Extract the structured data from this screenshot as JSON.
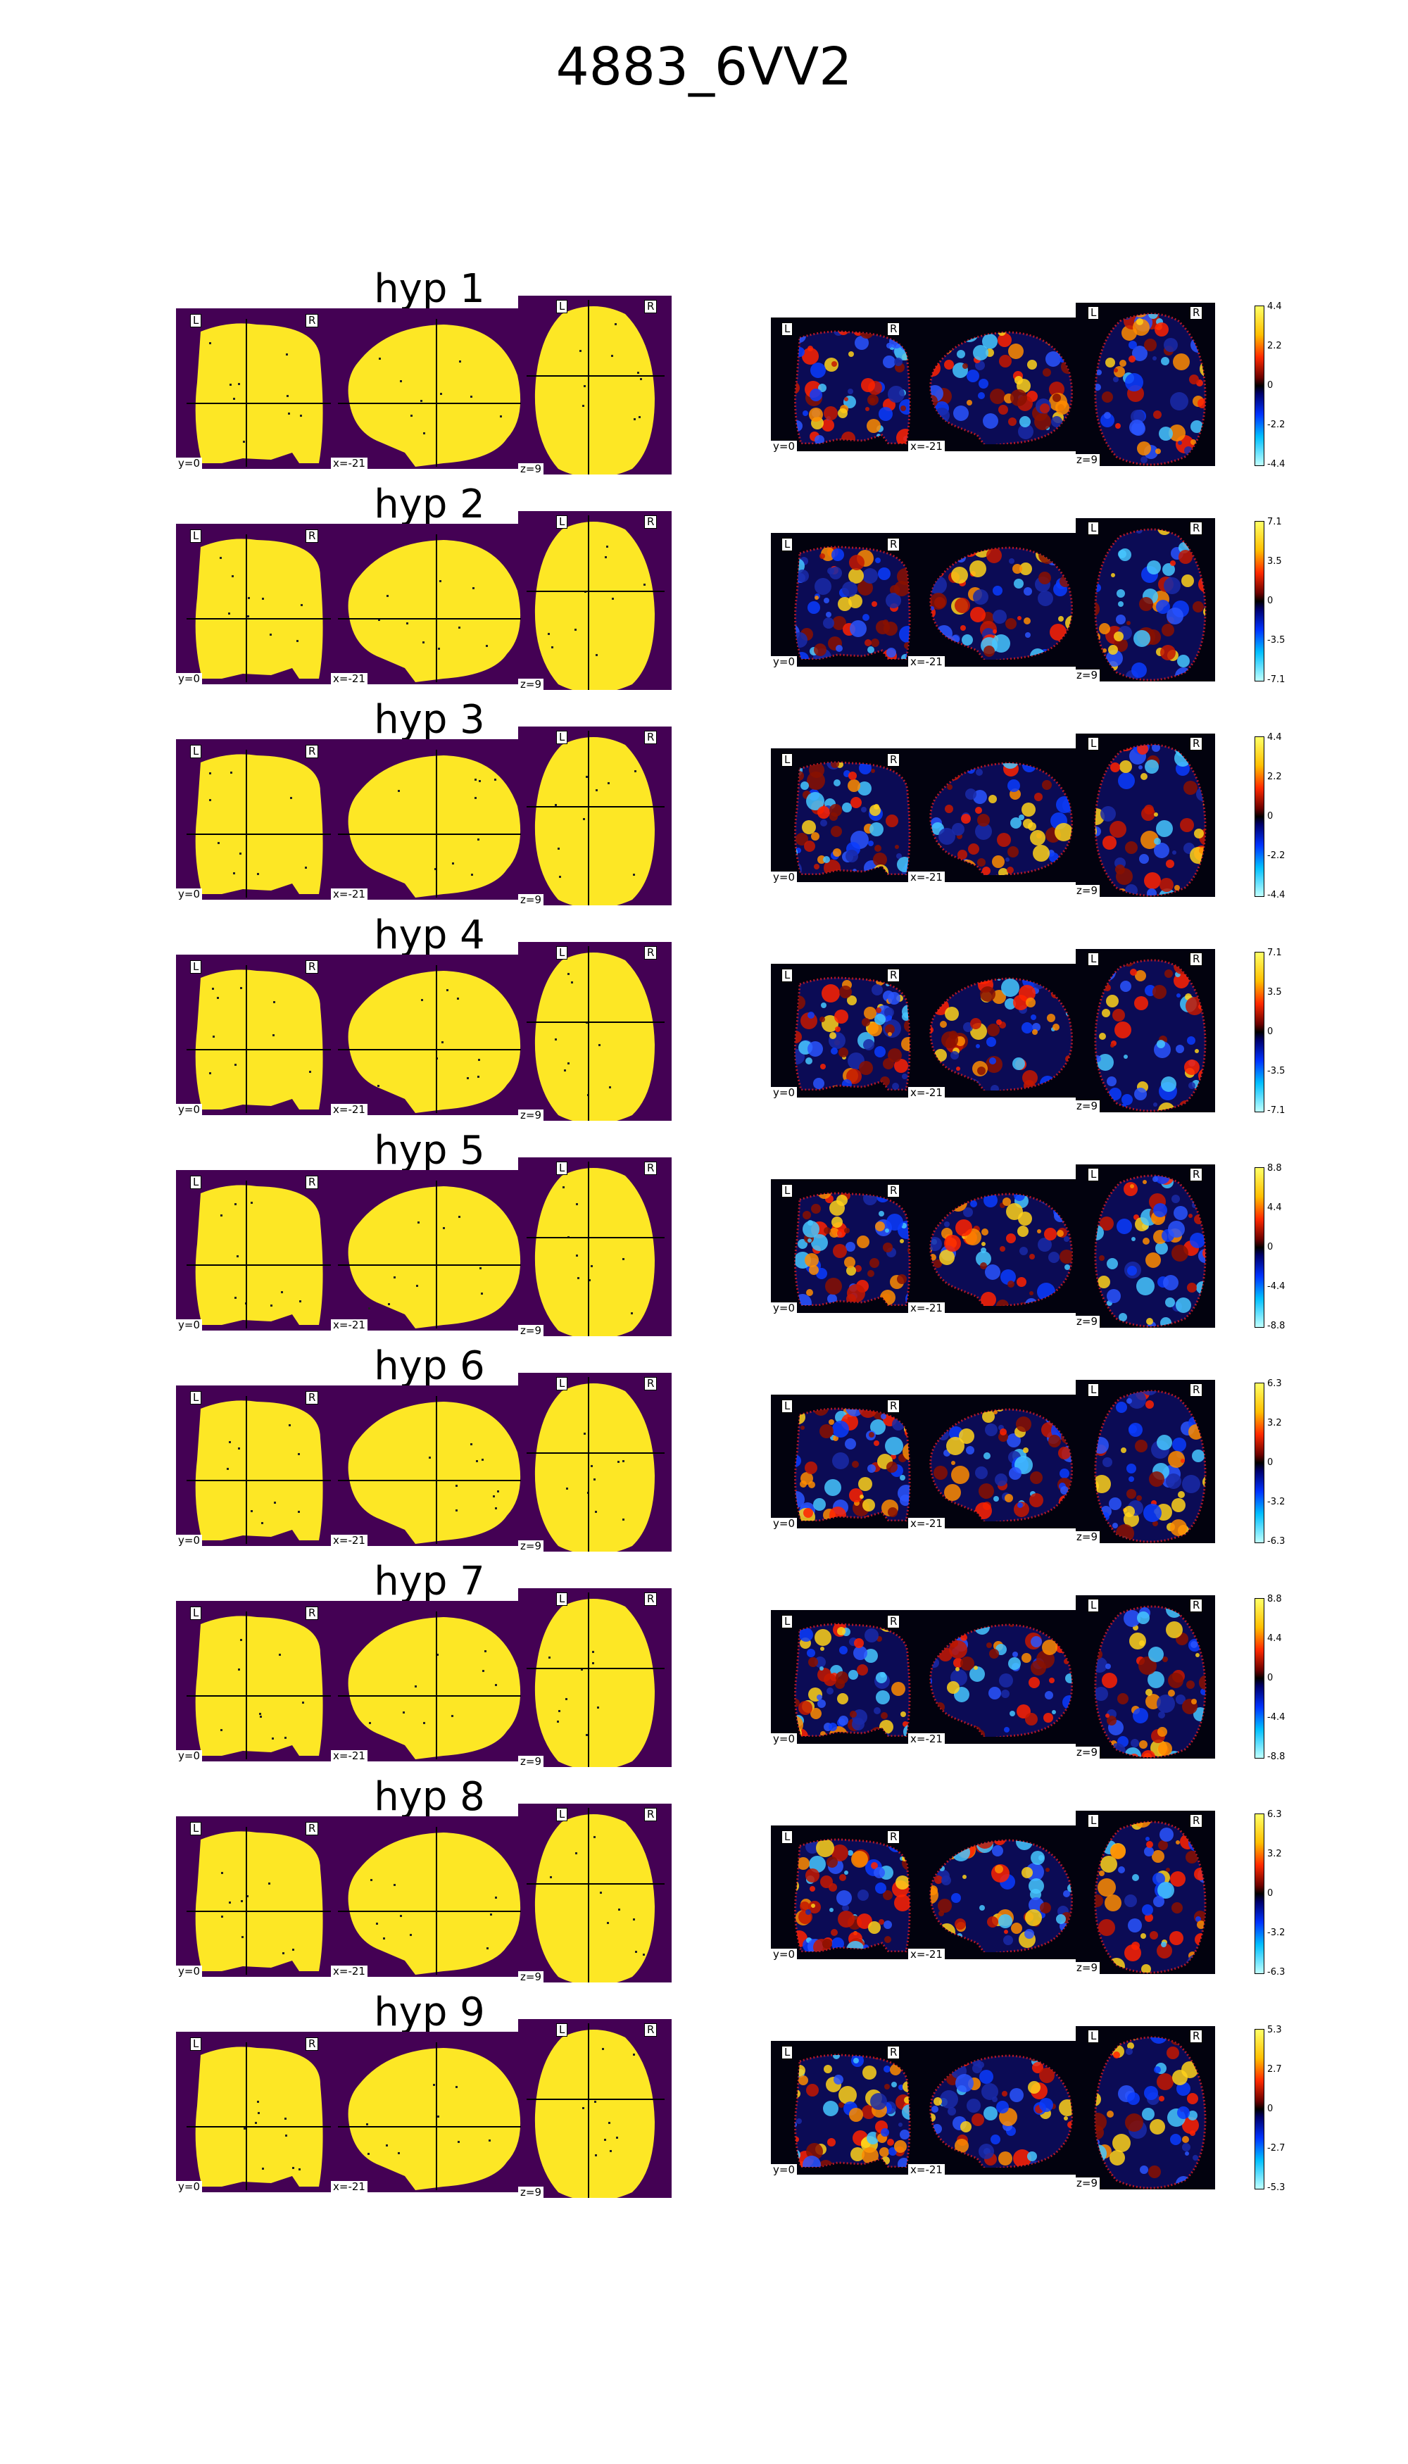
{
  "page_title": "4883_6VV2",
  "orient_labels": {
    "left": "L",
    "right": "R"
  },
  "coord_labels": {
    "coronal": "y=0",
    "sagittal": "x=-21",
    "axial": "z=9"
  },
  "colors": {
    "mask_bg": "#440154",
    "mask_fill": "#fde725",
    "stat_bg": "#02020e"
  },
  "rows": [
    {
      "label": "hyp 1",
      "ticks": [
        "4.4",
        "2.2",
        "0",
        "-2.2",
        "-4.4"
      ]
    },
    {
      "label": "hyp 2",
      "ticks": [
        "7.1",
        "3.5",
        "0",
        "-3.5",
        "-7.1"
      ]
    },
    {
      "label": "hyp 3",
      "ticks": [
        "4.4",
        "2.2",
        "0",
        "-2.2",
        "-4.4"
      ]
    },
    {
      "label": "hyp 4",
      "ticks": [
        "7.1",
        "3.5",
        "0",
        "-3.5",
        "-7.1"
      ]
    },
    {
      "label": "hyp 5",
      "ticks": [
        "8.8",
        "4.4",
        "0",
        "-4.4",
        "-8.8"
      ]
    },
    {
      "label": "hyp 6",
      "ticks": [
        "6.3",
        "3.2",
        "0",
        "-3.2",
        "-6.3"
      ]
    },
    {
      "label": "hyp 7",
      "ticks": [
        "8.8",
        "4.4",
        "0",
        "-4.4",
        "-8.8"
      ]
    },
    {
      "label": "hyp 8",
      "ticks": [
        "6.3",
        "3.2",
        "0",
        "-3.2",
        "-6.3"
      ]
    },
    {
      "label": "hyp 9",
      "ticks": [
        "5.3",
        "2.7",
        "0",
        "-2.7",
        "-5.3"
      ]
    }
  ]
}
